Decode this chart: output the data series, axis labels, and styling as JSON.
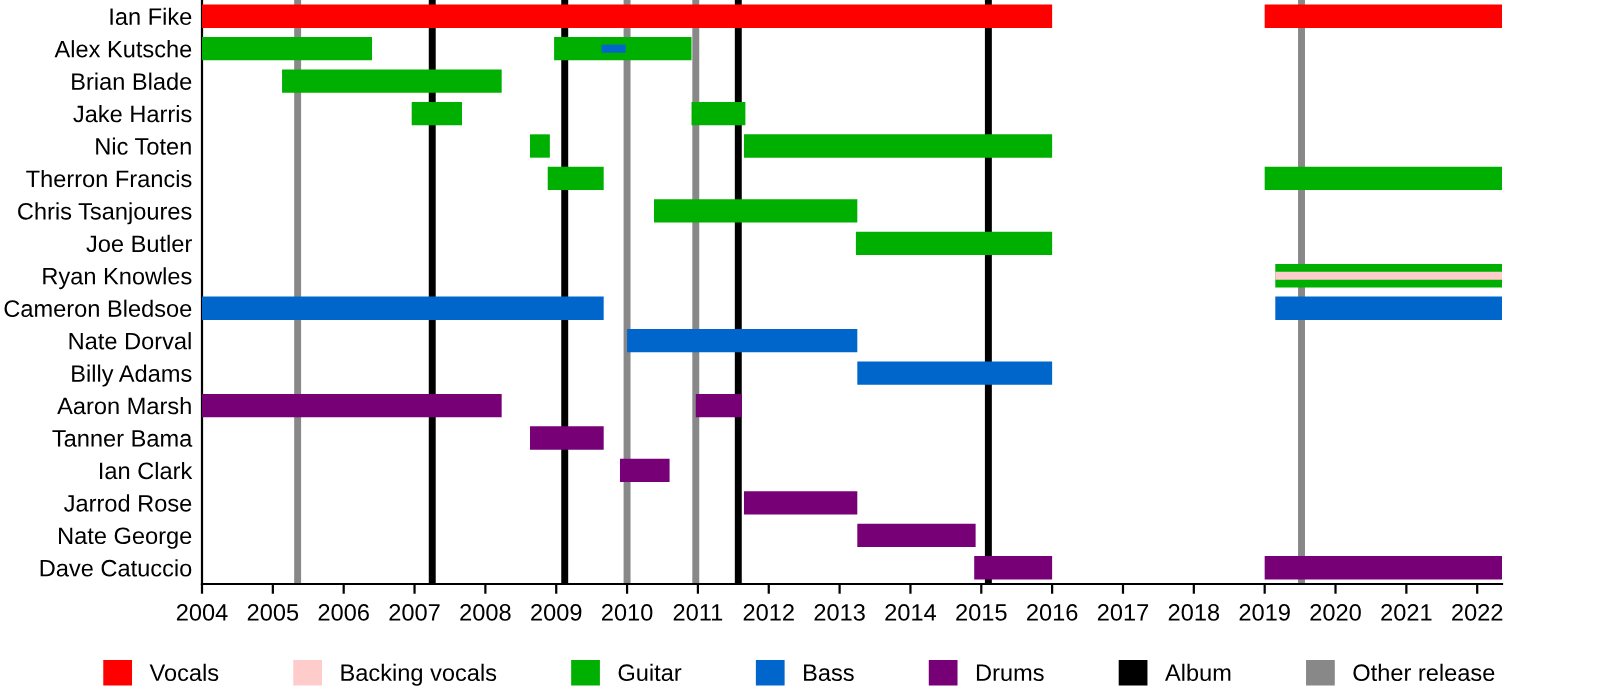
{
  "chart_data": {
    "type": "bar",
    "orientation": "horizontal",
    "xlim": [
      2004,
      2022.35
    ],
    "xticks": [
      2004,
      2005,
      2006,
      2007,
      2008,
      2009,
      2010,
      2011,
      2012,
      2013,
      2014,
      2015,
      2016,
      2017,
      2018,
      2019,
      2020,
      2021,
      2022
    ],
    "grid": false,
    "legend": "bottom",
    "categories": [
      "Ian Fike",
      "Alex Kutsche",
      "Brian Blade",
      "Jake Harris",
      "Nic Toten",
      "Therron Francis",
      "Chris Tsanjoures",
      "Joe Butler",
      "Ryan Knowles",
      "Cameron Bledsoe",
      "Nate Dorval",
      "Billy Adams",
      "Aaron Marsh",
      "Tanner Bama",
      "Ian Clark",
      "Jarrod Rose",
      "Nate George",
      "Dave Catuccio"
    ],
    "series": [
      {
        "name": "Vocals",
        "color": "#ff0000",
        "base": [
          2004,
          null,
          null,
          null,
          null,
          null,
          null,
          null,
          null,
          null,
          null,
          null,
          null,
          null,
          null,
          null,
          null,
          null
        ],
        "values": [
          12,
          null,
          null,
          null,
          null,
          null,
          null,
          null,
          null,
          null,
          null,
          null,
          null,
          null,
          null,
          null,
          null,
          null
        ]
      },
      {
        "name": "Backing vocals",
        "color": "#ffcccc",
        "base": [
          null,
          null,
          null,
          null,
          null,
          null,
          null,
          null,
          2019.15,
          null,
          null,
          null,
          null,
          null,
          null,
          null,
          null,
          null
        ],
        "values": [
          null,
          null,
          null,
          null,
          null,
          null,
          null,
          null,
          3.2,
          null,
          null,
          null,
          null,
          null,
          null,
          null,
          null,
          null
        ]
      },
      {
        "name": "Guitar",
        "color": "#00b000",
        "base": [
          null,
          2004,
          2005.13,
          2006.96,
          2008.63,
          2008.88,
          2010.38,
          2013.23,
          2019.15,
          null,
          null,
          null,
          null,
          null,
          null,
          null,
          null,
          null
        ],
        "values": [
          null,
          2.4,
          3.1,
          0.71,
          0.28,
          0.79,
          2.87,
          2.77,
          3.2,
          null,
          null,
          null,
          null,
          null,
          null,
          null,
          null,
          null
        ]
      },
      {
        "name": "Bass",
        "color": "#0066cc",
        "base": [
          null,
          2009.64,
          null,
          null,
          null,
          null,
          null,
          null,
          null,
          2004,
          2010.0,
          2013.25,
          null,
          null,
          null,
          null,
          null,
          null
        ],
        "values": [
          null,
          0.34,
          null,
          null,
          null,
          null,
          null,
          null,
          null,
          5.67,
          3.25,
          2.75,
          null,
          null,
          null,
          null,
          null,
          null
        ]
      },
      {
        "name": "Drums",
        "color": "#770077",
        "base": [
          null,
          null,
          null,
          null,
          null,
          null,
          null,
          null,
          null,
          null,
          null,
          null,
          2004,
          2008.63,
          2009.9,
          2011.65,
          2013.25,
          2014.9
        ],
        "values": [
          null,
          null,
          null,
          null,
          null,
          null,
          null,
          null,
          null,
          null,
          null,
          null,
          4.23,
          1.04,
          0.7,
          1.6,
          1.67,
          1.1
        ]
      },
      {
        "color": "#ff0000",
        "base": [
          2019,
          null,
          null,
          null,
          null,
          null,
          null,
          null,
          null,
          null,
          null,
          null,
          null,
          null,
          null,
          null,
          null,
          null
        ],
        "values": [
          3.35,
          null,
          null,
          null,
          null,
          null,
          null,
          null,
          null,
          null,
          null,
          null,
          null,
          null,
          null,
          null,
          null,
          null
        ]
      },
      {
        "color": "#00b000",
        "base": [
          null,
          2008.97,
          null,
          2010.91,
          2011.65,
          2019.0,
          null,
          null,
          null,
          null,
          null,
          null,
          null,
          null,
          null,
          null,
          null,
          null
        ],
        "values": [
          null,
          1.94,
          null,
          0.76,
          4.35,
          3.35,
          null,
          null,
          null,
          null,
          null,
          null,
          null,
          null,
          null,
          null,
          null,
          null
        ]
      },
      {
        "color": "#0066cc",
        "base": [
          null,
          null,
          null,
          null,
          null,
          null,
          null,
          null,
          null,
          2019.15,
          null,
          null,
          null,
          null,
          null,
          null,
          null,
          null
        ],
        "values": [
          null,
          null,
          null,
          null,
          null,
          null,
          null,
          null,
          null,
          3.2,
          null,
          null,
          null,
          null,
          null,
          null,
          null,
          null
        ]
      },
      {
        "color": "#770077",
        "base": [
          null,
          null,
          null,
          null,
          null,
          null,
          null,
          null,
          null,
          null,
          null,
          null,
          2010.97,
          null,
          null,
          null,
          null,
          2019.0
        ],
        "values": [
          null,
          null,
          null,
          null,
          null,
          null,
          null,
          null,
          null,
          null,
          null,
          null,
          0.65,
          null,
          null,
          null,
          null,
          3.35
        ]
      }
    ],
    "ref_lines": [
      {
        "axis": "x",
        "value": 2007.25,
        "label": "Album",
        "color": "#000000"
      },
      {
        "axis": "x",
        "value": 2009.12,
        "color": "#000000"
      },
      {
        "axis": "x",
        "value": 2011.57,
        "color": "#000000"
      },
      {
        "axis": "x",
        "value": 2015.1,
        "color": "#000000"
      },
      {
        "axis": "x",
        "value": 2005.35,
        "label": "Other release",
        "color": "#888888"
      },
      {
        "axis": "x",
        "value": 2010.0,
        "color": "#888888"
      },
      {
        "axis": "x",
        "value": 2010.97,
        "color": "#888888"
      },
      {
        "axis": "x",
        "value": 2019.52,
        "color": "#888888"
      }
    ]
  }
}
